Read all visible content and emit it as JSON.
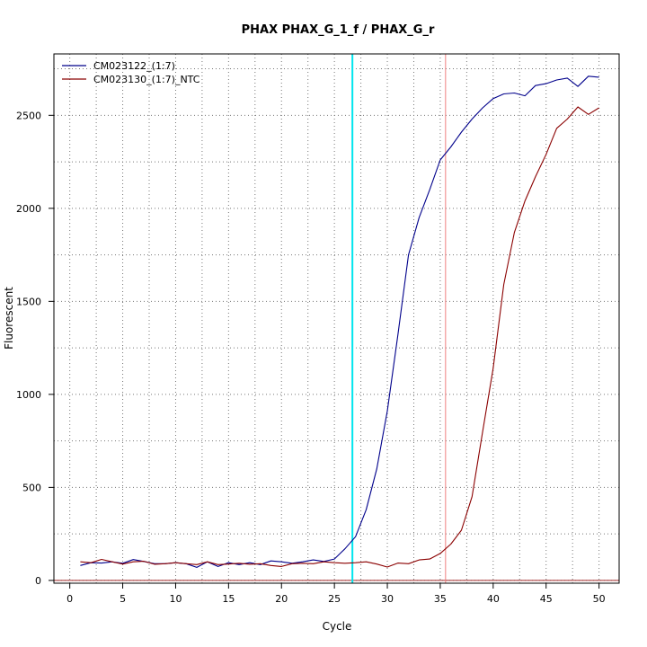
{
  "chart_data": {
    "type": "line",
    "title": "PHAX  PHAX_G_1_f / PHAX_G_r",
    "xlabel": "Cycle",
    "ylabel": "Fluorescent",
    "xlim": [
      -1.5,
      51.9
    ],
    "ylim": [
      -15,
      2830
    ],
    "x_ticks": [
      0,
      5,
      10,
      15,
      20,
      25,
      30,
      35,
      40,
      45,
      50
    ],
    "y_ticks": [
      0,
      500,
      1000,
      1500,
      2000,
      2500
    ],
    "grid": "dotted",
    "legend_position": "top-left",
    "threshold": {
      "value": 0,
      "color": "#a52a2a"
    },
    "cycle_lines": [
      {
        "x": 26.7,
        "color": "#00e5ee",
        "style": "solid"
      },
      {
        "x": 35.5,
        "color": "#f08080",
        "style": "solid"
      }
    ],
    "x": [
      1,
      2,
      3,
      4,
      5,
      6,
      7,
      8,
      9,
      10,
      11,
      12,
      13,
      14,
      15,
      16,
      17,
      18,
      19,
      20,
      21,
      22,
      23,
      24,
      25,
      26,
      27,
      28,
      29,
      30,
      31,
      32,
      33,
      34,
      35,
      36,
      37,
      38,
      39,
      40,
      41,
      42,
      43,
      44,
      45,
      46,
      47,
      48,
      49,
      50
    ],
    "series": [
      {
        "name": "CM023122_(1:7)",
        "color": "#00008b",
        "values": [
          80,
          95,
          93,
          100,
          92,
          112,
          102,
          90,
          90,
          95,
          90,
          70,
          100,
          75,
          95,
          85,
          95,
          85,
          105,
          100,
          92,
          100,
          110,
          102,
          115,
          170,
          235,
          380,
          600,
          910,
          1320,
          1750,
          1950,
          2100,
          2260,
          2330,
          2410,
          2480,
          2540,
          2590,
          2615,
          2620,
          2605,
          2660,
          2670,
          2690,
          2700,
          2655,
          2710,
          2705
        ]
      },
      {
        "name": "CM023130_(1:7)_NTC",
        "color": "#8b0000",
        "values": [
          100,
          95,
          113,
          100,
          88,
          100,
          103,
          87,
          90,
          95,
          90,
          85,
          100,
          85,
          88,
          92,
          87,
          90,
          80,
          75,
          90,
          92,
          90,
          100,
          95,
          92,
          95,
          100,
          88,
          72,
          93,
          90,
          110,
          115,
          145,
          195,
          270,
          450,
          800,
          1140,
          1590,
          1870,
          2040,
          2170,
          2290,
          2430,
          2480,
          2545,
          2505,
          2540
        ]
      }
    ]
  }
}
